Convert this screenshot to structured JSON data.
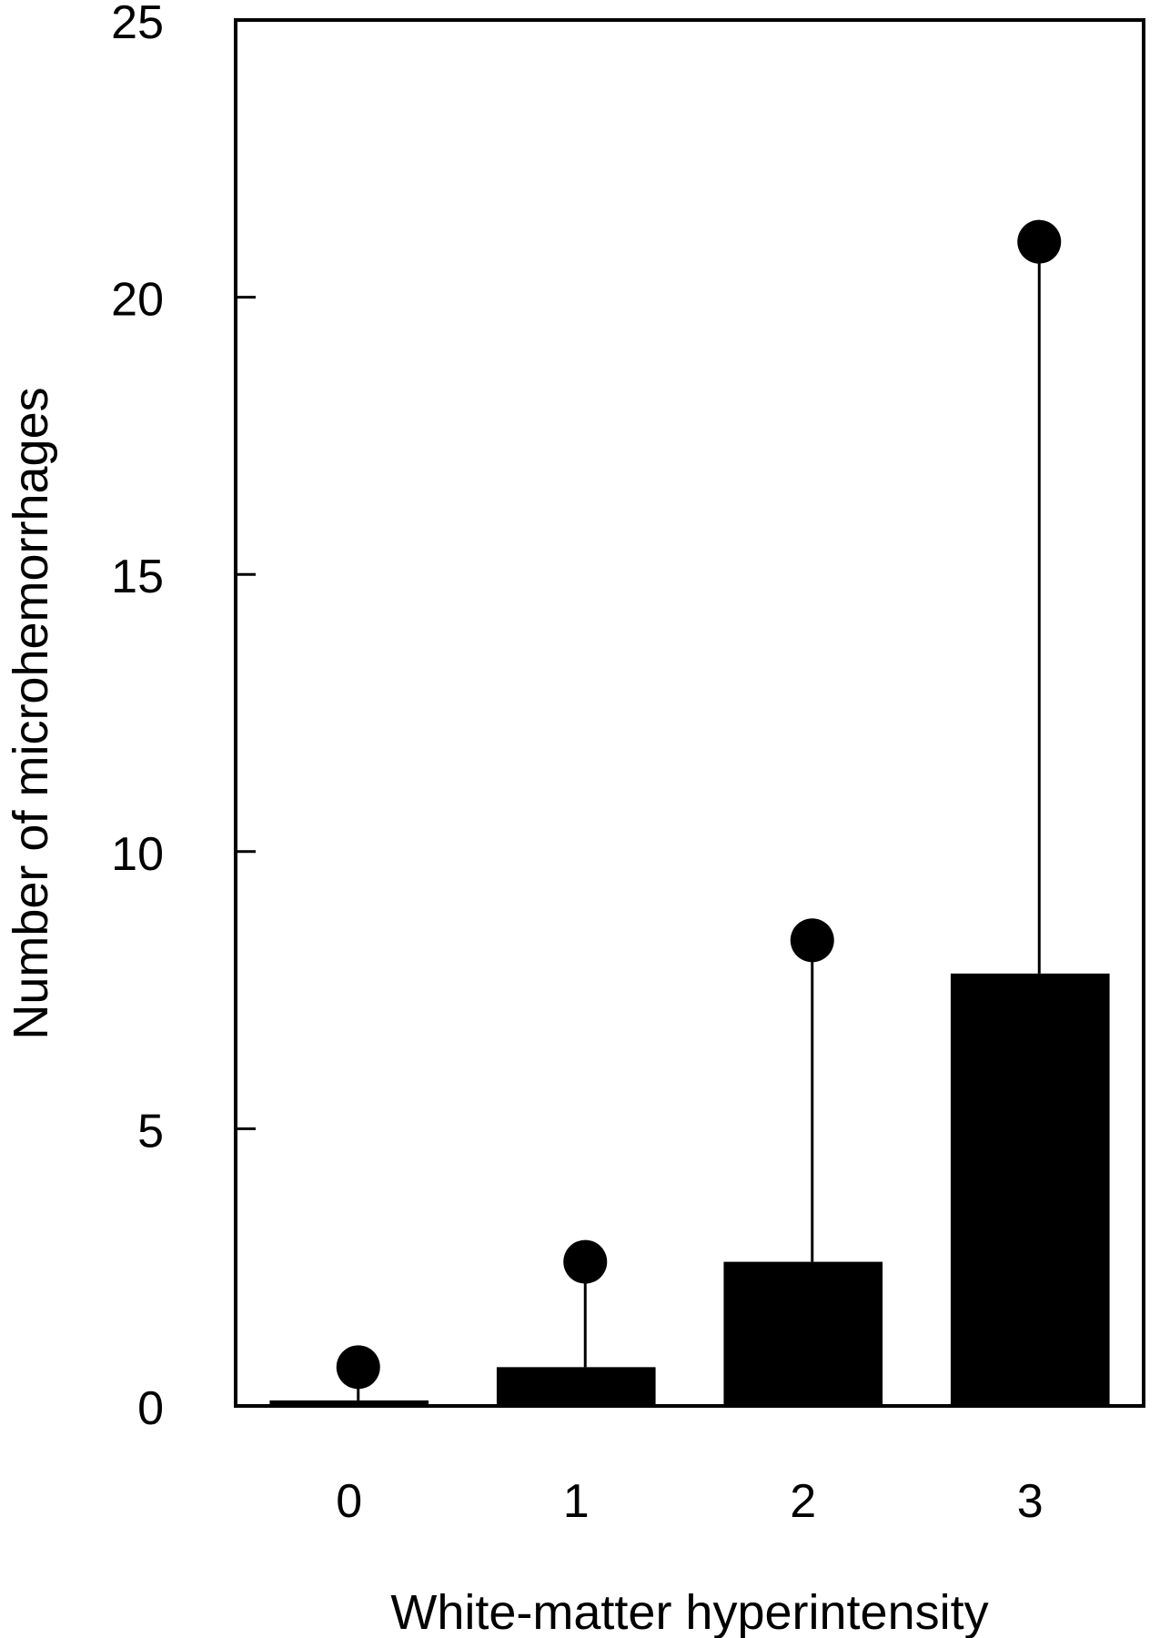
{
  "chart_data": {
    "type": "bar",
    "categories": [
      "0",
      "1",
      "2",
      "3"
    ],
    "values": [
      0.1,
      0.7,
      2.6,
      7.8
    ],
    "error_upper": [
      0.7,
      2.6,
      8.4,
      21.0
    ],
    "xlabel": "White-matter hyperintensity",
    "ylabel": "Number of microhemorrhages",
    "ylim": [
      0,
      25
    ],
    "yticks": [
      0,
      5,
      10,
      15,
      20,
      25
    ],
    "grid": false,
    "legend": "none",
    "colors": {
      "bar": "#000000",
      "frame": "#000000",
      "background": "#ffffff"
    }
  }
}
